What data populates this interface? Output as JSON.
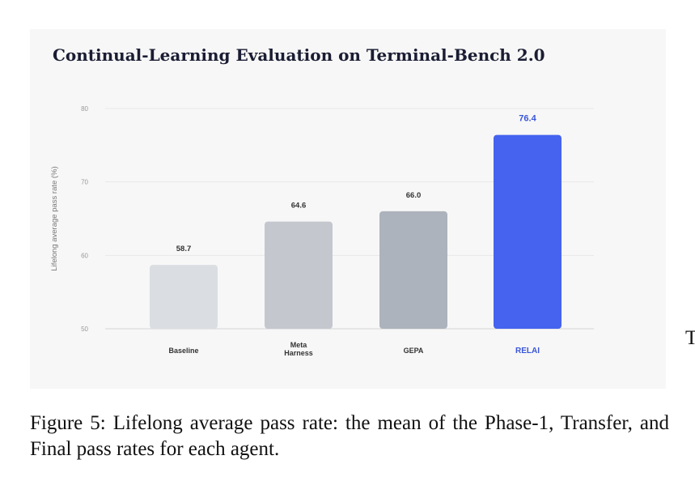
{
  "caption": "Figure 5: Lifelong average pass rate: the mean of the Phase-1, Transfer, and Final pass rates for each agent.",
  "side_fragment": "T",
  "colors": {
    "panel_background": "#f7f7f7",
    "baseline": "#dadde1",
    "meta_harness": "#c4c7cd",
    "gepa": "#adb3bc",
    "relai": "#4563ef",
    "relai_label": "#3a56d9",
    "value_label": "#333333",
    "tick_label": "#999999"
  },
  "chart_data": {
    "type": "bar",
    "title": "Continual-Learning Evaluation on Terminal-Bench 2.0",
    "xlabel": "",
    "ylabel": "Lifelong average pass rate (%)",
    "ylim": [
      50,
      80
    ],
    "yticks": [
      50,
      60,
      70,
      80
    ],
    "grid": true,
    "legend": "none",
    "categories": [
      [
        "Baseline"
      ],
      [
        "Meta",
        "Harness"
      ],
      [
        "GEPA"
      ],
      [
        "RELAI"
      ]
    ],
    "values": [
      58.7,
      64.6,
      66.0,
      76.4
    ],
    "value_labels": [
      "58.7",
      "64.6",
      "66.0",
      "76.4"
    ],
    "bar_colors": [
      "#dadde1",
      "#c4c7cd",
      "#adb3bc",
      "#4563ef"
    ],
    "highlight_index": 3
  }
}
